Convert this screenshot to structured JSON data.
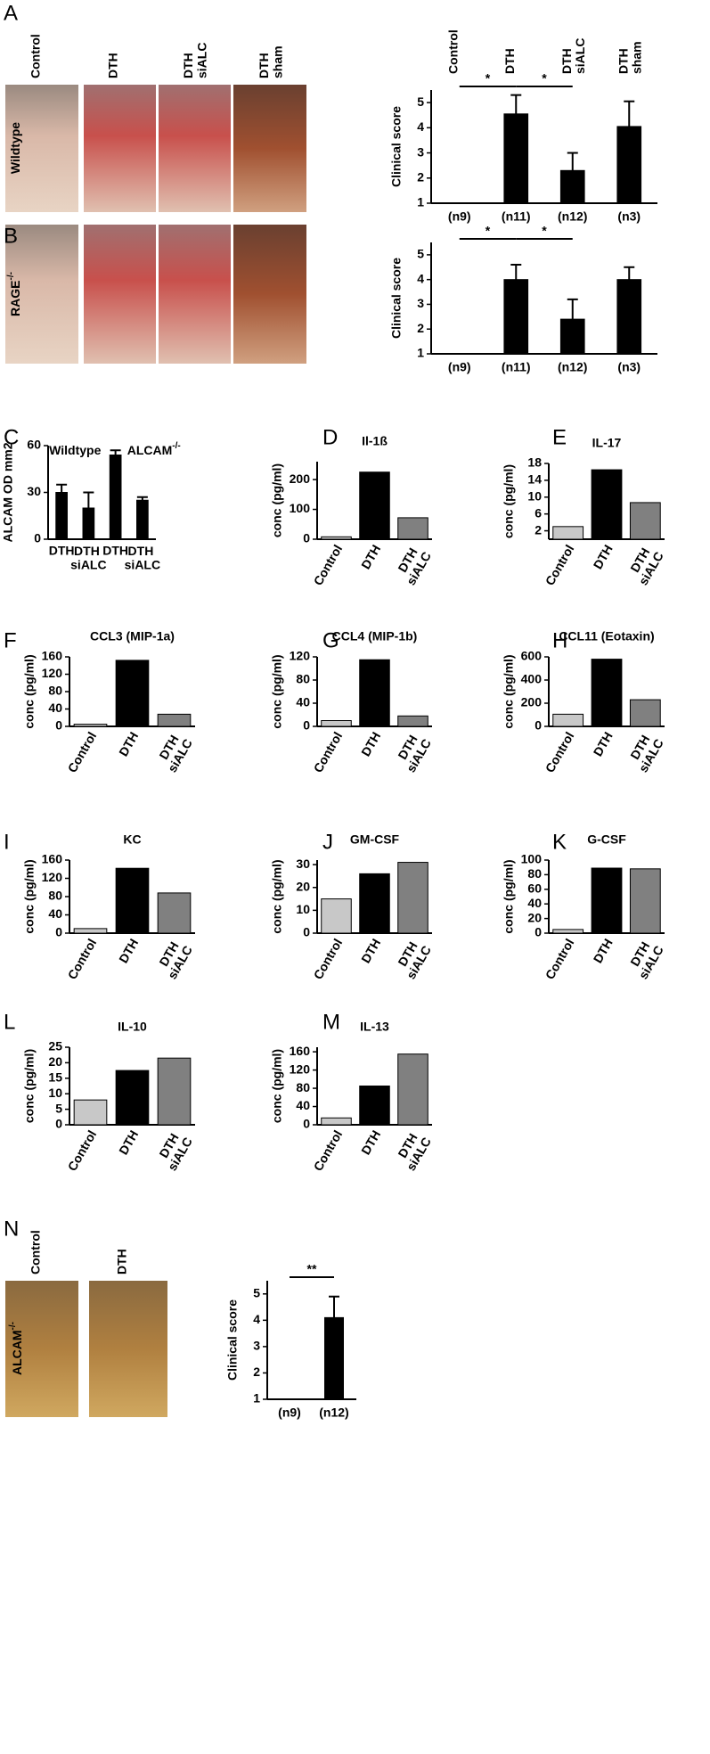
{
  "photo_panels": [
    {
      "label": "A",
      "columns": [
        "Control",
        "DTH",
        "DTH siALC",
        "DTH sham"
      ],
      "row_label": {
        "text": "Wildtype"
      }
    },
    {
      "label": "B",
      "row_label": {
        "text": "RAGE",
        "sup": "-/-"
      }
    },
    {
      "label": "N",
      "columns": [
        "Control",
        "DTH"
      ],
      "row_label": {
        "text": "ALCAM",
        "sup": "-/-"
      }
    }
  ],
  "chart_data": [
    {
      "type": "bar",
      "ylabel": "Clinical score",
      "category_position": "top",
      "categories": [
        "Control",
        "DTH",
        "DTH siALC",
        "DTH sham"
      ],
      "values": [
        null,
        4.55,
        2.3,
        4.05
      ],
      "errors": [
        null,
        0.75,
        0.7,
        1.0
      ],
      "n_labels": [
        "(n9)",
        "(n11)",
        "(n12)",
        "(n3)"
      ],
      "significance": [
        {
          "between": [
            0,
            1
          ],
          "label": "*"
        },
        {
          "between": [
            1,
            2
          ],
          "label": "*"
        }
      ],
      "color": "#000000",
      "ylim": [
        1,
        5.5
      ],
      "yticks": [
        1,
        2,
        3,
        4,
        5
      ]
    },
    {
      "type": "bar",
      "ylabel": "Clinical score",
      "values": [
        null,
        4.0,
        2.4,
        4.0
      ],
      "errors": [
        null,
        0.6,
        0.8,
        0.5
      ],
      "n_labels": [
        "(n9)",
        "(n11)",
        "(n12)",
        "(n3)"
      ],
      "significance": [
        {
          "between": [
            0,
            1
          ],
          "label": "*"
        },
        {
          "between": [
            1,
            2
          ],
          "label": "*"
        }
      ],
      "color": "#000000",
      "ylim": [
        1,
        5.5
      ],
      "yticks": [
        1,
        2,
        3,
        4,
        5
      ]
    },
    {
      "type": "bar",
      "label": "C",
      "ylabel": "ALCAM OD mm2",
      "category_position": "bottom",
      "categories": [
        "DTH",
        "DTH siALC",
        "DTH",
        "DTH siALC"
      ],
      "groups": [
        {
          "text": "Wildtype"
        },
        {
          "text": "ALCAM",
          "sup": "-/-"
        }
      ],
      "values": [
        30,
        20,
        54,
        25
      ],
      "errors": [
        5,
        10,
        3,
        2
      ],
      "color": "#000000",
      "ylim": [
        0,
        60
      ],
      "yticks": [
        0,
        30,
        60
      ]
    },
    {
      "type": "bar",
      "label": "D",
      "title": "Il-1ß",
      "ylabel": "conc (pg/ml)",
      "category_position": "bottom-rotated",
      "categories": [
        "Control",
        "DTH",
        "DTH siALC"
      ],
      "values": [
        8,
        225,
        72
      ],
      "colors": [
        "#c8c8c8",
        "#000000",
        "#808080"
      ],
      "ylim": [
        0,
        260
      ],
      "yticks": [
        0,
        100,
        200
      ]
    },
    {
      "type": "bar",
      "label": "E",
      "title": "IL-17",
      "ylabel": "conc (pg/ml)",
      "category_position": "bottom-rotated",
      "categories": [
        "Control",
        "DTH",
        "DTH siALC"
      ],
      "values": [
        3,
        16.5,
        8.7
      ],
      "colors": [
        "#c8c8c8",
        "#000000",
        "#808080"
      ],
      "ylim": [
        0,
        18
      ],
      "yticks": [
        2,
        6,
        10,
        14,
        18
      ]
    },
    {
      "type": "bar",
      "label": "F",
      "title": "CCL3 (MIP-1a)",
      "ylabel": "conc (pg/ml)",
      "category_position": "bottom-rotated",
      "categories": [
        "Control",
        "DTH",
        "DTH siALC"
      ],
      "values": [
        5,
        152,
        28
      ],
      "colors": [
        "#c8c8c8",
        "#000000",
        "#808080"
      ],
      "ylim": [
        0,
        160
      ],
      "yticks": [
        0,
        40,
        80,
        120,
        160
      ]
    },
    {
      "type": "bar",
      "label": "G",
      "title": "CCL4 (MIP-1b)",
      "ylabel": "conc (pg/ml)",
      "category_position": "bottom-rotated",
      "categories": [
        "Control",
        "DTH",
        "DTH siALC"
      ],
      "values": [
        10,
        115,
        18
      ],
      "colors": [
        "#c8c8c8",
        "#000000",
        "#808080"
      ],
      "ylim": [
        0,
        120
      ],
      "yticks": [
        0,
        40,
        80,
        120
      ]
    },
    {
      "type": "bar",
      "label": "H",
      "title": "CCL11 (Eotaxin)",
      "ylabel": "conc (pg/ml)",
      "category_position": "bottom-rotated",
      "categories": [
        "Control",
        "DTH",
        "DTH siALC"
      ],
      "values": [
        105,
        580,
        230
      ],
      "colors": [
        "#c8c8c8",
        "#000000",
        "#808080"
      ],
      "ylim": [
        0,
        600
      ],
      "yticks": [
        0,
        200,
        400,
        600
      ]
    },
    {
      "type": "bar",
      "label": "I",
      "title": "KC",
      "ylabel": "conc (pg/ml)",
      "category_position": "bottom-rotated",
      "categories": [
        "Control",
        "DTH",
        "DTH siALC"
      ],
      "values": [
        10,
        142,
        88
      ],
      "colors": [
        "#c8c8c8",
        "#000000",
        "#808080"
      ],
      "ylim": [
        0,
        160
      ],
      "yticks": [
        0,
        40,
        80,
        120,
        160
      ]
    },
    {
      "type": "bar",
      "label": "J",
      "title": "GM-CSF",
      "ylabel": "conc (pg/ml)",
      "category_position": "bottom-rotated",
      "categories": [
        "Control",
        "DTH",
        "DTH siALC"
      ],
      "values": [
        15,
        26,
        31
      ],
      "colors": [
        "#c8c8c8",
        "#000000",
        "#808080"
      ],
      "ylim": [
        0,
        32
      ],
      "yticks": [
        0,
        10,
        20,
        30
      ]
    },
    {
      "type": "bar",
      "label": "K",
      "title": "G-CSF",
      "ylabel": "conc (pg/ml)",
      "category_position": "bottom-rotated",
      "categories": [
        "Control",
        "DTH",
        "DTH siALC"
      ],
      "values": [
        5,
        89,
        88
      ],
      "colors": [
        "#c8c8c8",
        "#000000",
        "#808080"
      ],
      "ylim": [
        0,
        100
      ],
      "yticks": [
        0,
        20,
        40,
        60,
        80,
        100
      ]
    },
    {
      "type": "bar",
      "label": "L",
      "title": "IL-10",
      "ylabel": "conc (pg/ml)",
      "category_position": "bottom-rotated",
      "categories": [
        "Control",
        "DTH",
        "DTH siALC"
      ],
      "values": [
        8,
        17.5,
        21.5
      ],
      "colors": [
        "#c8c8c8",
        "#000000",
        "#808080"
      ],
      "ylim": [
        0,
        25
      ],
      "yticks": [
        0,
        5,
        10,
        15,
        20,
        25
      ]
    },
    {
      "type": "bar",
      "label": "M",
      "title": "IL-13",
      "ylabel": "conc (pg/ml)",
      "category_position": "bottom-rotated",
      "categories": [
        "Control",
        "DTH",
        "DTH siALC"
      ],
      "values": [
        15,
        85,
        155
      ],
      "colors": [
        "#c8c8c8",
        "#000000",
        "#808080"
      ],
      "ylim": [
        0,
        170
      ],
      "yticks": [
        0,
        40,
        80,
        120,
        160
      ]
    },
    {
      "type": "bar",
      "ylabel": "Clinical score",
      "values": [
        null,
        4.1
      ],
      "errors": [
        null,
        0.8
      ],
      "n_labels": [
        "(n9)",
        "(n12)"
      ],
      "significance": [
        {
          "between": [
            0,
            1
          ],
          "label": "**"
        }
      ],
      "color": "#000000",
      "ylim": [
        1,
        5.5
      ],
      "yticks": [
        1,
        2,
        3,
        4,
        5
      ]
    }
  ]
}
